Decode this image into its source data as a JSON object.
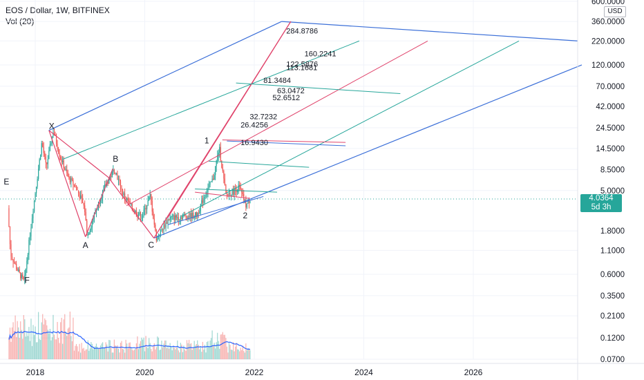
{
  "header": {
    "symbol_line": "EOS / Dollar, 1W, BITFINEX",
    "volume_line": "Vol (20)"
  },
  "currency_button": "USD",
  "last_price": {
    "price": "4.0364",
    "countdown": "5d 3h",
    "value": 4.0364,
    "color": "#26a69a"
  },
  "colors": {
    "up": "#26a69a",
    "down": "#ef5350",
    "pitchfork_blue": "#3b6fd8",
    "pitchfork_red": "#e0436b",
    "pitchfork_green": "#26a69a",
    "vol_ma": "#2962ff"
  },
  "chart_data": {
    "type": "candlestick",
    "y_scale": "log",
    "price_ticks": [
      {
        "label": "600.0000",
        "value": 600
      },
      {
        "label": "360.0000",
        "value": 360
      },
      {
        "label": "220.0000",
        "value": 220
      },
      {
        "label": "120.0000",
        "value": 120
      },
      {
        "label": "70.0000",
        "value": 70
      },
      {
        "label": "42.0000",
        "value": 42
      },
      {
        "label": "24.5000",
        "value": 24.5
      },
      {
        "label": "14.5000",
        "value": 14.5
      },
      {
        "label": "8.5000",
        "value": 8.5
      },
      {
        "label": "5.0000",
        "value": 5
      },
      {
        "label": "1.8000",
        "value": 1.8
      },
      {
        "label": "1.1000",
        "value": 1.1
      },
      {
        "label": "0.6000",
        "value": 0.6
      },
      {
        "label": "0.3500",
        "value": 0.35
      },
      {
        "label": "0.2100",
        "value": 0.21
      },
      {
        "label": "0.1200",
        "value": 0.12
      },
      {
        "label": "0.0700",
        "value": 0.07
      }
    ],
    "x_ticks": [
      "2018",
      "2020",
      "2022",
      "2024",
      "2026"
    ],
    "fib_levels": [
      "284.8786",
      "160.2241",
      "122.5876",
      "113.1681",
      "81.3484",
      "63.0472",
      "52.6512",
      "32.7232",
      "26.4256",
      "16.9430"
    ],
    "wave_labels": [
      "E",
      "F",
      "X",
      "A",
      "B",
      "C",
      "1",
      "2"
    ],
    "key_points": {
      "E": {
        "date": "2017-07",
        "price": 3.7
      },
      "F": {
        "date": "2017-10",
        "price": 0.5
      },
      "X": {
        "date": "2018-04",
        "price": 22.9
      },
      "A": {
        "date": "2018-12",
        "price": 1.55
      },
      "B": {
        "date": "2019-06",
        "price": 8.7
      },
      "C": {
        "date": "2020-03",
        "price": 1.5
      },
      "1": {
        "date": "2021-05",
        "price": 14.9
      },
      "2": {
        "date": "2021-11",
        "price": 3.4
      }
    },
    "last_price": 4.0364
  }
}
